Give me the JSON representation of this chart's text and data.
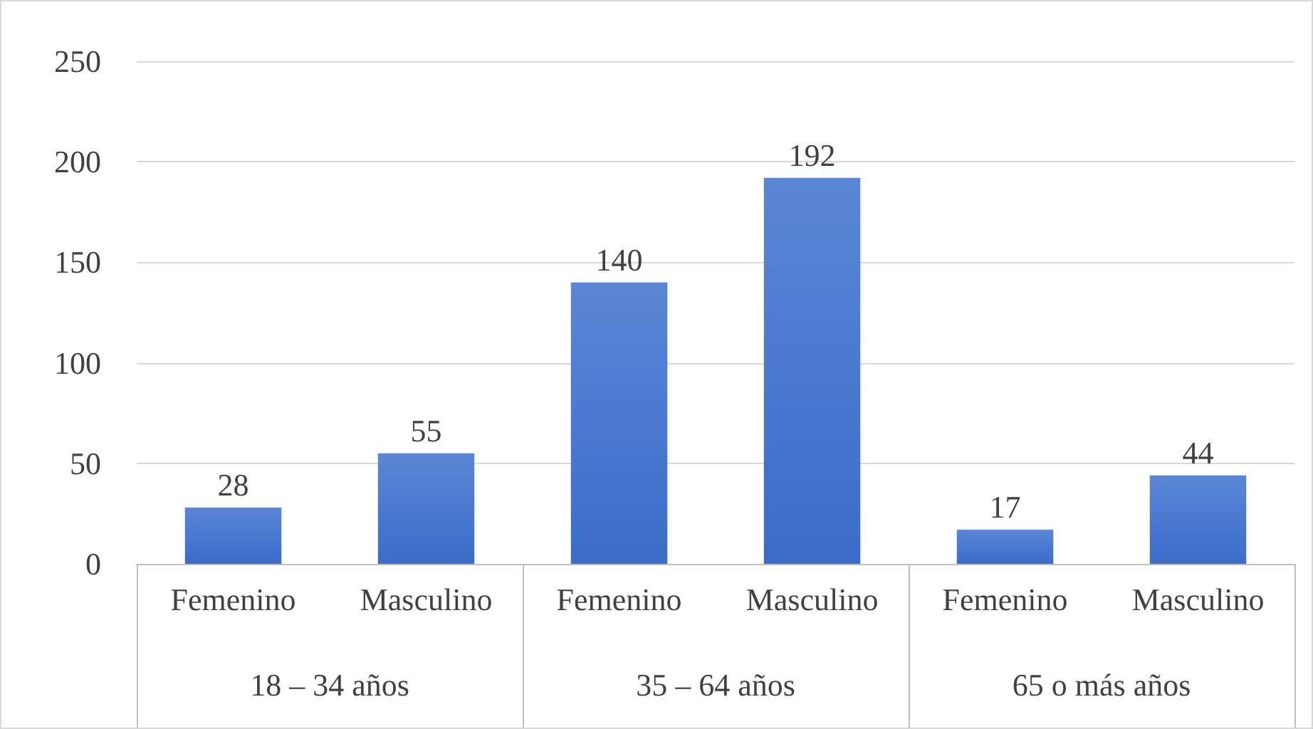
{
  "chart_data": {
    "type": "bar",
    "categories": [
      "Femenino",
      "Masculino",
      "Femenino",
      "Masculino",
      "Femenino",
      "Masculino"
    ],
    "values": [
      28,
      55,
      140,
      192,
      17,
      44
    ],
    "color": "#3b6cc9",
    "ylim": [
      0,
      250
    ],
    "yticks": [
      0,
      50,
      100,
      150,
      200,
      250
    ],
    "grid": "y",
    "data_labels": true,
    "annotations": [
      "18 – 34 años",
      "35 – 64 años",
      "65 o más años"
    ]
  }
}
